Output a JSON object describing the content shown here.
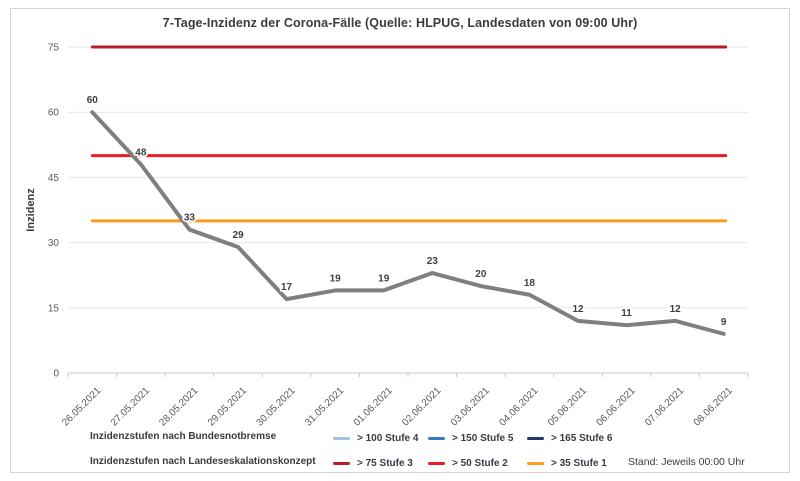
{
  "title": "7-Tage-Inzidenz der Corona-Fälle (Quelle: HLPUG, Landesdaten von 09:00 Uhr)",
  "footer": {
    "stand_label": "Stand: Jeweils 00:00 Uhr"
  },
  "legend": {
    "rows": [
      {
        "label": "Inzidenzstufen nach Bundesnotbremse",
        "items": [
          {
            "label": "> 100 Stufe 4",
            "color": "#9dc3e6"
          },
          {
            "label": "> 150 Stufe 5",
            "color": "#3a79c3"
          },
          {
            "label": "> 165 Stufe 6",
            "color": "#1f3864"
          }
        ]
      },
      {
        "label": "Inzidenzstufen nach Landeseskalationskonzept",
        "items": [
          {
            "label": "> 75 Stufe 3",
            "color": "#b42025"
          },
          {
            "label": "> 50 Stufe 2",
            "color": "#ed1c24"
          },
          {
            "label": "> 35 Stufe 1",
            "color": "#ff9a1e"
          }
        ]
      }
    ]
  },
  "chart_data": {
    "type": "line",
    "title": "7-Tage-Inzidenz der Corona-Fälle (Quelle: HLPUG, Landesdaten von 09:00 Uhr)",
    "xlabel": "",
    "ylabel": "Inzidenz",
    "ylim": [
      0,
      75
    ],
    "yticks": [
      0,
      15,
      30,
      45,
      60,
      75
    ],
    "grid": true,
    "data_labels": true,
    "legend_position": "bottom",
    "categories": [
      "26.05.2021",
      "27.05.2021",
      "28.05.2021",
      "29.05.2021",
      "30.05.2021",
      "31.05.2021",
      "01.06.2021",
      "02.06.2021",
      "03.06.2021",
      "04.06.2021",
      "05.06.2021",
      "06.06.2021",
      "07.06.2021",
      "08.06.2021"
    ],
    "series": [
      {
        "name": "7-Tage-Inzidenz",
        "color": "#7f7f7f",
        "values": [
          60,
          48,
          33,
          29,
          17,
          19,
          19,
          23,
          20,
          18,
          12,
          11,
          12,
          9
        ]
      }
    ],
    "reference_lines": [
      {
        "value": 75,
        "label": "> 75 Stufe 3",
        "color": "#b42025"
      },
      {
        "value": 50,
        "label": "> 50 Stufe 2",
        "color": "#ed1c24"
      },
      {
        "value": 35,
        "label": "> 35 Stufe 1",
        "color": "#ff9a1e"
      }
    ]
  }
}
